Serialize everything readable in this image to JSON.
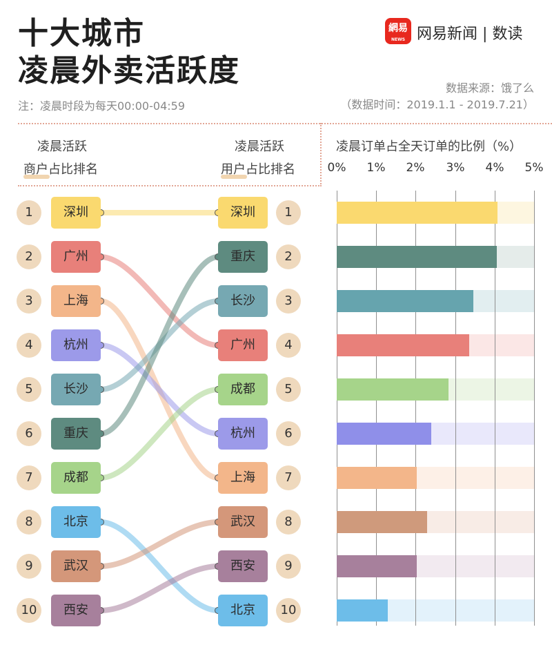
{
  "title": {
    "line1": "十大城市",
    "line2": "凌晨外卖活跃度"
  },
  "note": "注：凌晨时段为每天00:00-04:59",
  "brand": {
    "logo": "網易",
    "logo_sub": "NEWS",
    "name": "网易新闻",
    "separator": "|",
    "section": "数读"
  },
  "source": {
    "line1": "数据来源：饿了么",
    "line2": "（数据时间：2019.1.1 - 2019.7.21）"
  },
  "headers": {
    "merchant": {
      "line1": "凌晨活跃",
      "highlight": "商户",
      "rest": "占比排名"
    },
    "user": {
      "line1": "凌晨活跃",
      "highlight": "用户",
      "rest": "占比排名"
    },
    "chart_title": "凌晨订单占全天订单的比例（%）"
  },
  "ranks": [
    "1",
    "2",
    "3",
    "4",
    "5",
    "6",
    "7",
    "8",
    "9",
    "10"
  ],
  "merchant_ranking": [
    "深圳",
    "广州",
    "上海",
    "杭州",
    "长沙",
    "重庆",
    "成都",
    "北京",
    "武汉",
    "西安"
  ],
  "user_ranking": [
    "深圳",
    "重庆",
    "长沙",
    "广州",
    "成都",
    "杭州",
    "上海",
    "武汉",
    "西安",
    "北京"
  ],
  "colors": {
    "深圳": "#fad96f",
    "广州": "#e8807a",
    "上海": "#f3b68a",
    "杭州": "#9c9ae9",
    "长沙": "#76a8b2",
    "重庆": "#5e8b80",
    "成都": "#a6d48a",
    "北京": "#6dbde9",
    "武汉": "#d4977a",
    "西安": "#a7809c"
  },
  "chart_data": {
    "type": "bar",
    "orientation": "horizontal",
    "title": "凌晨订单占全天订单的比例（%）",
    "xlim": [
      0,
      5
    ],
    "xticks": [
      "0%",
      "1%",
      "2%",
      "3%",
      "4%",
      "5%"
    ],
    "categories": [
      "深圳",
      "重庆",
      "长沙",
      "广州",
      "成都",
      "杭州",
      "上海",
      "武汉",
      "西安",
      "北京"
    ],
    "values": [
      4.07,
      4.05,
      3.47,
      3.35,
      2.84,
      2.39,
      2.03,
      2.29,
      2.03,
      1.3
    ],
    "bar_colors": [
      "#fad96f",
      "#5e8b80",
      "#66a4ae",
      "#e8807a",
      "#a6d48a",
      "#8f8fe9",
      "#f3b68a",
      "#cf9a7c",
      "#a7809c",
      "#6dbde9"
    ],
    "track_colors": [
      "#fdf6e0",
      "#e5ecea",
      "#e2eef0",
      "#fbe7e6",
      "#ecf5e5",
      "#e9e8fb",
      "#fdf0e7",
      "#f8ece6",
      "#f2eaf0",
      "#e3f2fb"
    ]
  }
}
